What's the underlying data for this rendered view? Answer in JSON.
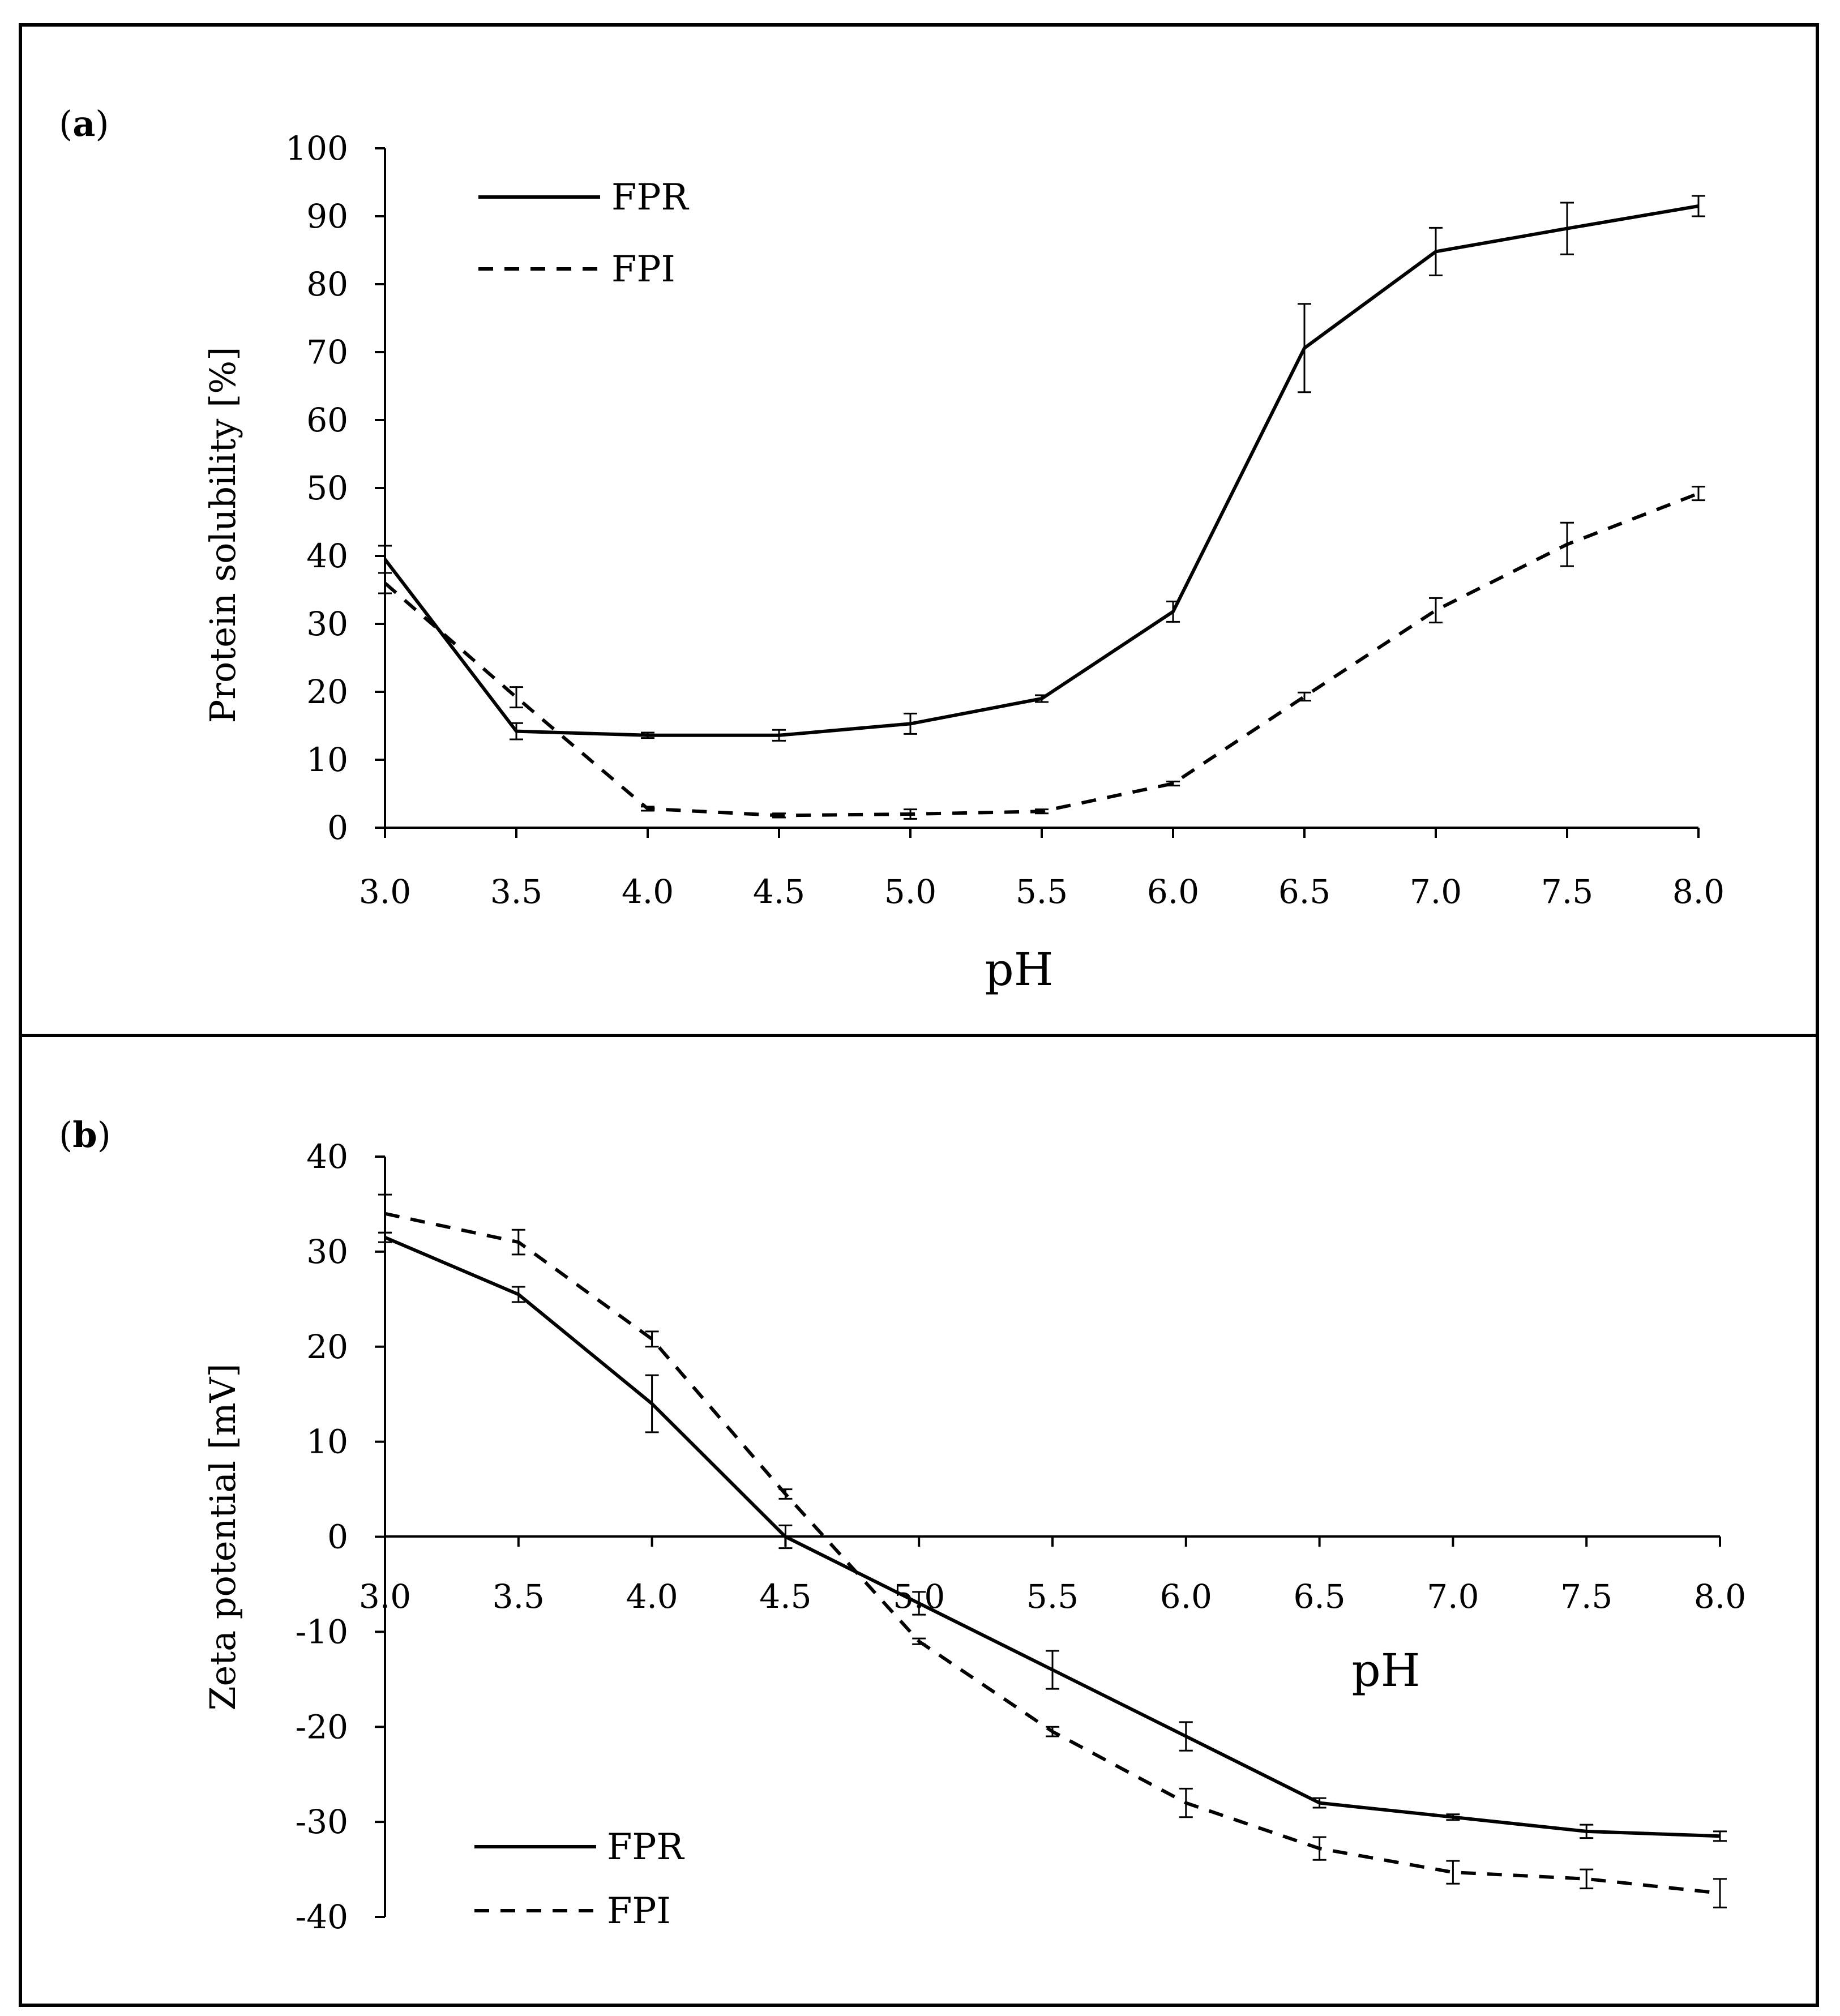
{
  "chart_data": [
    {
      "type": "line",
      "panel_label": "a",
      "xlabel": "pH",
      "ylabel": "Protein solubility [%]",
      "x": [
        3.0,
        3.5,
        4.0,
        4.5,
        5.0,
        5.5,
        6.0,
        6.5,
        7.0,
        7.5,
        8.0
      ],
      "x_tick_labels": [
        "3.0",
        "3.5",
        "4.0",
        "4.5",
        "5.0",
        "5.5",
        "6.0",
        "6.5",
        "7.0",
        "7.5",
        "8.0"
      ],
      "ylim": [
        0,
        100
      ],
      "y_ticks": [
        0,
        10,
        20,
        30,
        40,
        50,
        60,
        70,
        80,
        90,
        100
      ],
      "legend_position": "top-left",
      "series": [
        {
          "name": "FPR",
          "style": "solid",
          "values": [
            39.5,
            14.2,
            13.6,
            13.6,
            15.3,
            19.0,
            31.8,
            70.6,
            84.8,
            88.2,
            91.5
          ],
          "errors": [
            2.0,
            1.2,
            0.4,
            0.8,
            1.5,
            0.5,
            1.5,
            6.5,
            3.5,
            3.8,
            1.5
          ]
        },
        {
          "name": "FPI",
          "style": "dashed",
          "values": [
            36.0,
            19.2,
            2.8,
            1.8,
            2.0,
            2.4,
            6.5,
            19.3,
            32.0,
            41.7,
            49.2
          ],
          "errors": [
            1.5,
            1.5,
            0.3,
            0.3,
            0.7,
            0.3,
            0.3,
            0.6,
            1.8,
            3.2,
            1.0
          ]
        }
      ]
    },
    {
      "type": "line",
      "panel_label": "b",
      "xlabel": "pH",
      "ylabel": "Zeta potential [mV]",
      "x": [
        3.0,
        3.5,
        4.0,
        4.5,
        5.0,
        5.5,
        6.0,
        6.5,
        7.0,
        7.5,
        8.0
      ],
      "x_tick_labels": [
        "3.0",
        "3.5",
        "4.0",
        "4.5",
        "5.0",
        "5.5",
        "6.0",
        "6.5",
        "7.0",
        "7.5",
        "8.0"
      ],
      "ylim": [
        -40,
        40
      ],
      "y_ticks": [
        -40,
        -30,
        -20,
        -10,
        0,
        10,
        20,
        30,
        40
      ],
      "legend_position": "bottom-left",
      "series": [
        {
          "name": "FPR",
          "style": "solid",
          "values": [
            31.5,
            25.5,
            14.0,
            0.0,
            -7.0,
            -14.0,
            -21.0,
            -28.0,
            -29.5,
            -31.0,
            -31.5
          ],
          "errors": [
            0.5,
            0.8,
            3.0,
            1.2,
            1.2,
            2.0,
            1.5,
            0.5,
            0.3,
            0.7,
            0.5
          ]
        },
        {
          "name": "FPI",
          "style": "dashed",
          "values": [
            34.0,
            31.0,
            20.8,
            4.5,
            -11.0,
            -20.5,
            -28.0,
            -32.8,
            -35.3,
            -36.0,
            -37.5
          ],
          "errors": [
            2.0,
            1.3,
            0.8,
            0.5,
            0.3,
            0.5,
            1.5,
            1.2,
            1.2,
            1.0,
            1.5
          ]
        }
      ]
    }
  ]
}
